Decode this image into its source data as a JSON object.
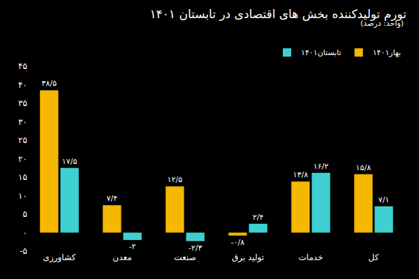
{
  "chart_data": {
    "type": "bar",
    "title": "تورم تولیدکننده بخش های اقتصادی در تابستان ۱۴۰۱",
    "subtitle": "(واحد: درصد)",
    "categories": [
      "کشاورزی",
      "معدن",
      "صنعت",
      "تولید برق",
      "خدمات",
      "کل"
    ],
    "series": [
      {
        "name": "بهار۱۴۰۱",
        "color": "#f5b700",
        "values": [
          38.5,
          7.4,
          12.5,
          -0.8,
          13.8,
          15.8
        ],
        "value_labels": [
          "۳۸/۵",
          "۷/۴",
          "۱۲/۵",
          "-۰/۸",
          "۱۳/۸",
          "۱۵/۸"
        ]
      },
      {
        "name": "تابستان۱۴۰۱",
        "color": "#3ed0d0",
        "values": [
          17.5,
          -2,
          -2.3,
          2.4,
          16.2,
          7.1
        ],
        "value_labels": [
          "۱۷/۵",
          "-۲",
          "-۲/۳",
          "۲/۴",
          "۱۶/۲",
          "۷/۱"
        ]
      }
    ],
    "ylim": [
      -5,
      45
    ],
    "yticks": [
      {
        "value": -5,
        "label": "-۵"
      },
      {
        "value": 0,
        "label": "۰"
      },
      {
        "value": 5,
        "label": "۵"
      },
      {
        "value": 10,
        "label": "۱۰"
      },
      {
        "value": 15,
        "label": "۱۵"
      },
      {
        "value": 20,
        "label": "۲۰"
      },
      {
        "value": 25,
        "label": "۲۵"
      },
      {
        "value": 30,
        "label": "۳۰"
      },
      {
        "value": 35,
        "label": "۳۵"
      },
      {
        "value": 40,
        "label": "۴۰"
      },
      {
        "value": 45,
        "label": "۴۵"
      }
    ],
    "grid": false,
    "legend": "top-right",
    "data_labels": true
  }
}
